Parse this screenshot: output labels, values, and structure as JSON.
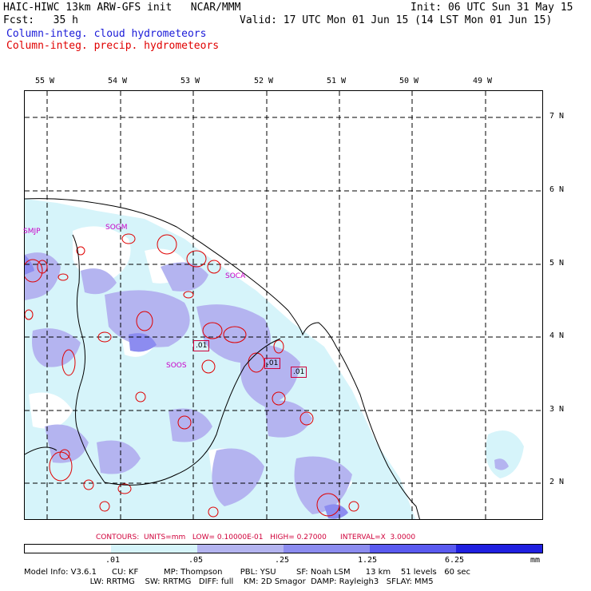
{
  "header": {
    "line1_left": "HAIC-HIWC 13km ARW-GFS init   NCAR/MMM",
    "line1_right": "Init: 06 UTC Sun 31 May 15",
    "line2_left": "Fcst:   35 h",
    "line2_right": "Valid: 17 UTC Mon 01 Jun 15 (14 LST Mon 01 Jun 15)",
    "legend_cloud": "Column-integ. cloud hydrometeors",
    "legend_precip": "Column-integ. precip. hydrometeors",
    "color_cloud": "#1a1ad8",
    "color_precip": "#e00000"
  },
  "longitudes": [
    "55 W",
    "54 W",
    "53 W",
    "52 W",
    "51 W",
    "50 W",
    "49 W"
  ],
  "latitudes": [
    "7 N",
    "6 N",
    "5 N",
    "4 N",
    "3 N",
    "2 N"
  ],
  "stations": [
    "SMJP",
    "SOGM",
    "SOCA",
    "SOOS"
  ],
  "box_labels": [
    ".01",
    ".01",
    ".01"
  ],
  "contours": {
    "text": "CONTOURS:  UNITS=mm   LOW= 0.10000E-01   HIGH= 0.27000      INTERVAL=X  3.0000"
  },
  "scale": {
    "ticks": [
      ".01",
      ".05",
      ".25",
      "1.25",
      "6.25"
    ],
    "unit": "mm",
    "colors": [
      "#ffffff",
      "#d6f4fa",
      "#b4b4f0",
      "#8c8cf0",
      "#5a5af0",
      "#2020e0"
    ]
  },
  "footer": {
    "line1": "Model Info: V3.6.1      CU: KF          MP: Thompson       PBL: YSU        SF: Noah LSM      13 km    51 levels   60 sec",
    "line2": "                          LW: RRTMG    SW: RRTMG   DIFF: full    KM: 2D Smagor  DAMP: Rayleigh3   SFLAY: MM5"
  }
}
